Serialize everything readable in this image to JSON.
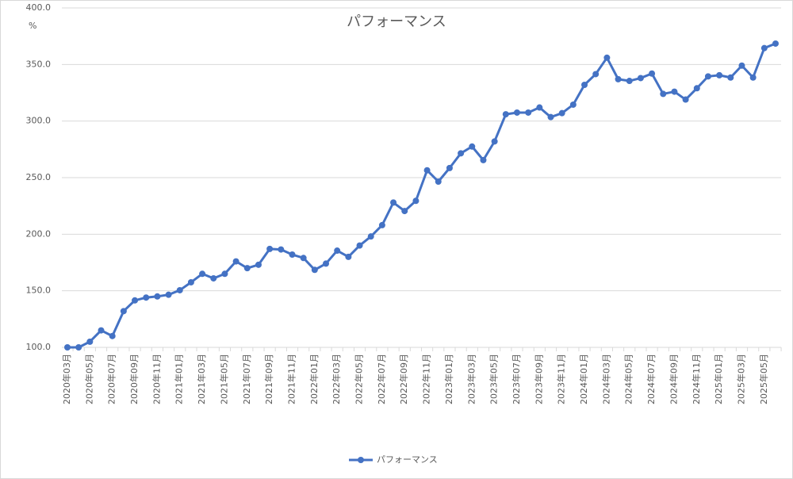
{
  "chart_data": {
    "type": "line",
    "title": "パフォーマンス",
    "y_label": "%",
    "categories": [
      "2020年03月",
      null,
      "2020年05月",
      null,
      "2020年07月",
      null,
      "2020年09月",
      null,
      "2020年11月",
      null,
      "2021年01月",
      null,
      "2021年03月",
      null,
      "2021年05月",
      null,
      "2021年07月",
      null,
      "2021年09月",
      null,
      "2021年11月",
      null,
      "2022年01月",
      null,
      "2022年03月",
      null,
      "2022年05月",
      null,
      "2022年07月",
      null,
      "2022年09月",
      null,
      "2022年11月",
      null,
      "2023年01月",
      null,
      "2023年03月",
      null,
      "2023年05月",
      null,
      "2023年07月",
      null,
      "2023年09月",
      null,
      "2023年11月",
      null,
      "2024年01月",
      null,
      "2024年03月",
      null,
      "2024年05月",
      null,
      "2024年07月",
      null,
      "2024年09月",
      null,
      "2024年11月",
      null,
      "2025年01月",
      null,
      "2025年03月",
      null,
      "2025年05月",
      null
    ],
    "series": [
      {
        "name": "パフォーマンス",
        "color": "#4472c4",
        "values": [
          100,
          100,
          105,
          115,
          110,
          132,
          141.5,
          144,
          145,
          146.5,
          150.5,
          157.5,
          165,
          161,
          165,
          176,
          170,
          173,
          187,
          186.5,
          182,
          179,
          168.5,
          174,
          185.5,
          180,
          190,
          198,
          208,
          228,
          220.5,
          229.5,
          256.5,
          246.5,
          258.5,
          271.5,
          277.5,
          265.5,
          282,
          306,
          307.5,
          307.5,
          312,
          303.5,
          307,
          314.5,
          332,
          341.5,
          356,
          337,
          335.5,
          338,
          342,
          324,
          326,
          319,
          329,
          339.5,
          340.5,
          338.5,
          349,
          338.5,
          364.5,
          368.5
        ]
      }
    ],
    "ylim": [
      100,
      400
    ],
    "yticks": [
      {
        "value": 100,
        "label": "100.0"
      },
      {
        "value": 150,
        "label": "150.0"
      },
      {
        "value": 200,
        "label": "200.0"
      },
      {
        "value": 250,
        "label": "250.0"
      },
      {
        "value": 300,
        "label": "300.0"
      },
      {
        "value": 350,
        "label": "350.0"
      },
      {
        "value": 400,
        "label": "400.0"
      }
    ],
    "grid": true,
    "legend": "bottom"
  }
}
